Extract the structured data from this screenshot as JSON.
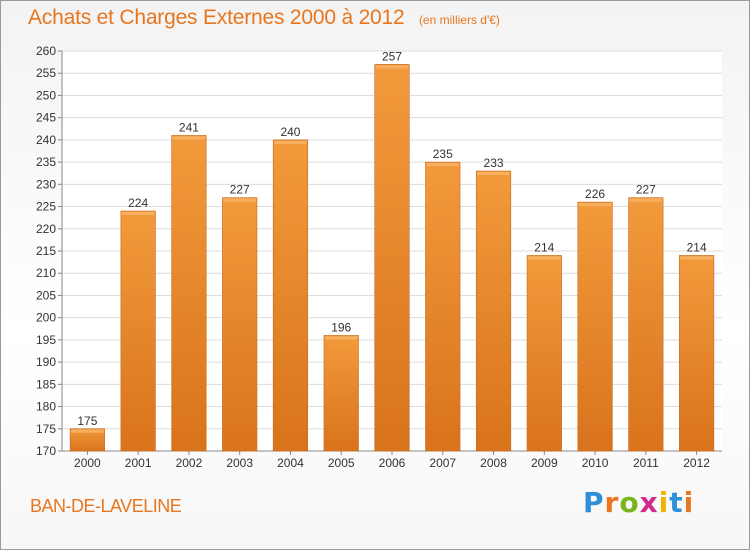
{
  "title": "Achats et Charges Externes 2000 à 2012",
  "subtitle": "(en milliers d'€)",
  "town": "BAN-DE-LAVELINE",
  "logo": {
    "letters": [
      "P",
      "r",
      "o",
      "x",
      "i",
      "t",
      "i"
    ],
    "colors": [
      "#2f8fd8",
      "#e8761e",
      "#7ab51d",
      "#d22a8a",
      "#f0b400",
      "#2f8fd8",
      "#e8761e"
    ]
  },
  "chart_data": {
    "type": "bar",
    "categories": [
      "2000",
      "2001",
      "2002",
      "2003",
      "2004",
      "2005",
      "2006",
      "2007",
      "2008",
      "2009",
      "2010",
      "2011",
      "2012"
    ],
    "values": [
      175,
      224,
      241,
      227,
      240,
      196,
      257,
      235,
      233,
      214,
      226,
      227,
      214
    ],
    "ylim": [
      170,
      260
    ],
    "ystep": 5,
    "grid": true,
    "bar_color": "#f29a3c",
    "bar_color_dark": "#d9731c"
  }
}
